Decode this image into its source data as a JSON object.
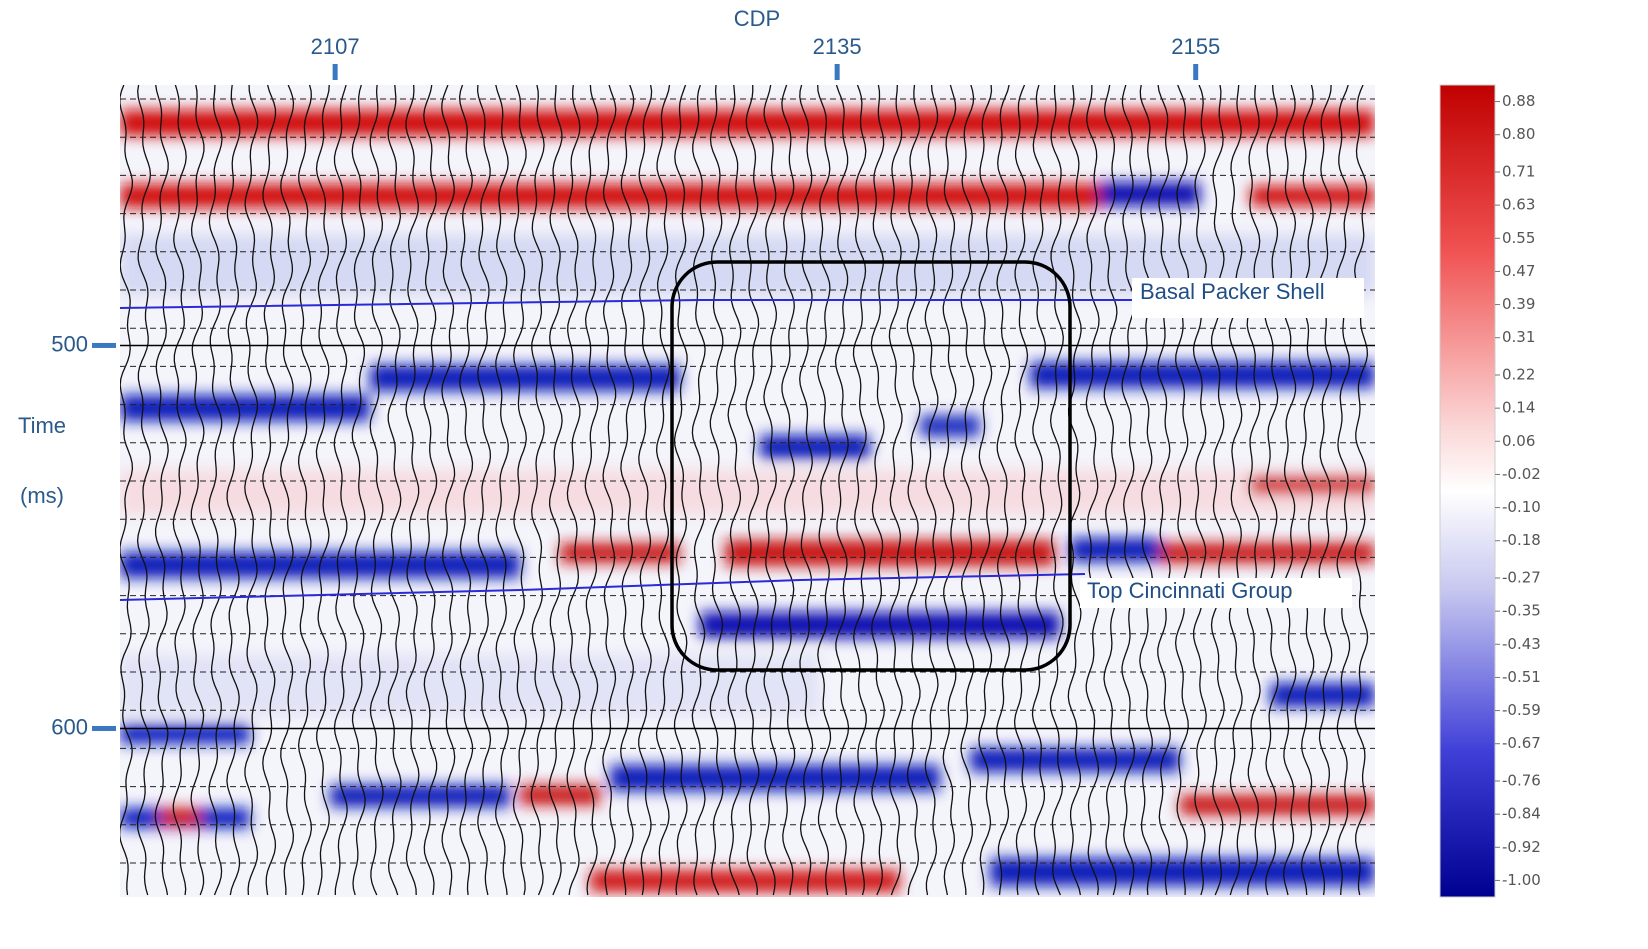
{
  "chart_data": {
    "type": "seismic",
    "xlabel": "CDP",
    "ylabel": "Time",
    "ylabel_unit": "(ms)",
    "xlim": [
      2095,
      2165
    ],
    "xticks": [
      2107,
      2135,
      2155
    ],
    "ylim": [
      432,
      644
    ],
    "yticks": [
      500,
      600
    ],
    "annotations": [
      "Basal Packer Shell",
      "Top Cincinnati Group"
    ],
    "colorbar": {
      "lim": [
        -1.04,
        0.92
      ],
      "ticks": [
        0.88,
        {
          "value": 0.8,
          "label": "0.80"
        },
        0.71,
        0.63,
        0.55,
        0.47,
        0.39,
        0.31,
        0.22,
        0.14,
        0.06,
        -0.02,
        {
          "value": -0.1,
          "label": "-0.10"
        },
        -0.18,
        -0.27,
        -0.35,
        -0.43,
        -0.51,
        -0.59,
        -0.67,
        -0.76,
        -0.84,
        -0.92,
        {
          "value": -1,
          "label": "-1.00"
        }
      ]
    }
  }
}
